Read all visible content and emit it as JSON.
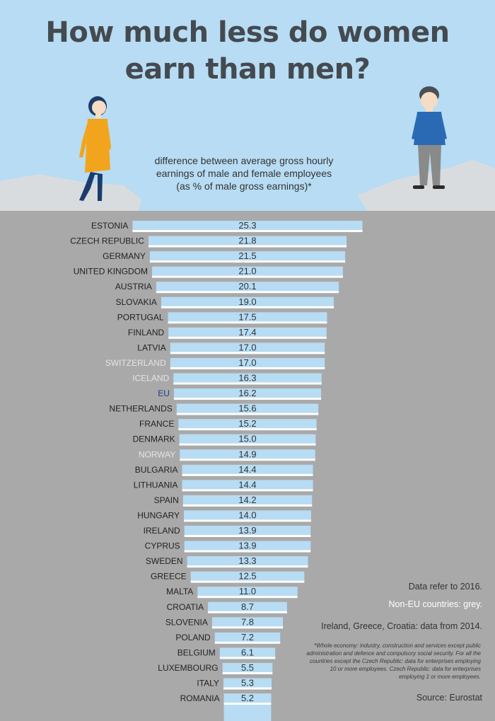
{
  "title_lines": [
    "How much less do women",
    "earn than men?"
  ],
  "subtitle_lines": [
    "difference between average gross hourly",
    "earnings of male and female employees",
    "(as % of male gross earnings)*"
  ],
  "notes": {
    "year": "Data refer to 2016.",
    "non_eu": "Non-EU countries: grey.",
    "data_2014": "Ireland, Greece, Croatia: data from 2014.",
    "footnote": "*Whole economy: industry, construction and services except public administration and defence and compulsory social security. For all the countries except the Czech Republic: data for enterprises employing 10 or more employees. Czech Republic: data for enterprises employing 1 or more employees.",
    "source": "Source: Eurostat"
  },
  "colors": {
    "background": "#b7dcf3",
    "cliff": "#a9a9a9",
    "bar": "#b7dcf3",
    "eu_label": "#1f3a93",
    "non_eu_label": "#e4e4e4",
    "label": "#222222",
    "woman_dress": "#f2a51c",
    "woman_hair": "#1c3c6b",
    "man_sweater": "#2a6ab5",
    "man_trousers": "#8a8a8a"
  },
  "chart_data": {
    "type": "bar",
    "orientation": "horizontal",
    "categories": [
      "ESTONIA",
      "CZECH REPUBLIC",
      "GERMANY",
      "UNITED KINGDOM",
      "AUSTRIA",
      "SLOVAKIA",
      "PORTUGAL",
      "FINLAND",
      "LATVIA",
      "SWITZERLAND",
      "ICELAND",
      "EU",
      "NETHERLANDS",
      "FRANCE",
      "DENMARK",
      "NORWAY",
      "BULGARIA",
      "LITHUANIA",
      "SPAIN",
      "HUNGARY",
      "IRELAND",
      "CYPRUS",
      "SWEDEN",
      "GREECE",
      "MALTA",
      "CROATIA",
      "SLOVENIA",
      "POLAND",
      "BELGIUM",
      "LUXEMBOURG",
      "ITALY",
      "ROMANIA"
    ],
    "values": [
      25.3,
      21.8,
      21.5,
      21.0,
      20.1,
      19.0,
      17.5,
      17.4,
      17.0,
      17.0,
      16.3,
      16.2,
      15.6,
      15.2,
      15.0,
      14.9,
      14.4,
      14.4,
      14.2,
      14.0,
      13.9,
      13.9,
      13.3,
      12.5,
      11.0,
      8.7,
      7.8,
      7.2,
      6.1,
      5.5,
      5.3,
      5.2
    ],
    "value_labels": [
      "25.3",
      "21.8",
      "21.5",
      "21.0",
      "20.1",
      "19.0",
      "17.5",
      "17.4",
      "17.0",
      "17.0",
      "16.3",
      "16.2",
      "15.6",
      "15.2",
      "15.0",
      "14.9",
      "14.4",
      "14.4",
      "14.2",
      "14.0",
      "13.9",
      "13.9",
      "13.3",
      "12.5",
      "11.0",
      "8.7",
      "7.8",
      "7.2",
      "6.1",
      "5.5",
      "5.3",
      "5.2"
    ],
    "group": [
      "EU",
      "EU",
      "EU",
      "EU",
      "EU",
      "EU",
      "EU",
      "EU",
      "EU",
      "non-EU",
      "non-EU",
      "EU-average",
      "EU",
      "EU",
      "EU",
      "non-EU",
      "EU",
      "EU",
      "EU",
      "EU",
      "EU",
      "EU",
      "EU",
      "EU",
      "EU",
      "EU",
      "EU",
      "EU",
      "EU",
      "EU",
      "EU",
      "EU"
    ],
    "sort": "descending",
    "bars_centered": true
  }
}
